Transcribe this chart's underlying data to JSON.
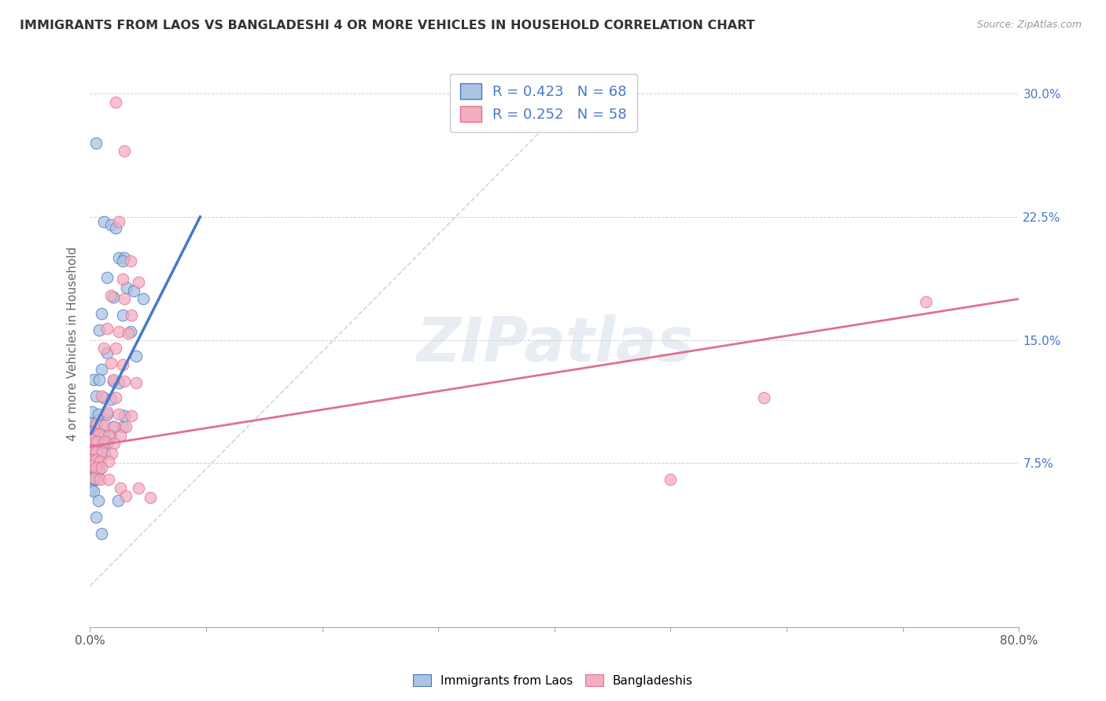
{
  "title": "IMMIGRANTS FROM LAOS VS BANGLADESHI 4 OR MORE VEHICLES IN HOUSEHOLD CORRELATION CHART",
  "source": "Source: ZipAtlas.com",
  "ylabel_label": "4 or more Vehicles in Household",
  "xlim": [
    0.0,
    0.8
  ],
  "ylim": [
    -0.025,
    0.32
  ],
  "yticks": [
    0.075,
    0.15,
    0.225,
    0.3
  ],
  "ytick_labels": [
    "7.5%",
    "15.0%",
    "22.5%",
    "30.0%"
  ],
  "xticks": [
    0.0,
    0.1,
    0.2,
    0.3,
    0.4,
    0.5,
    0.6,
    0.7,
    0.8
  ],
  "legend_label1": "Immigrants from Laos",
  "legend_label2": "Bangladeshis",
  "R1": 0.423,
  "N1": 68,
  "R2": 0.252,
  "N2": 58,
  "color_blue": "#aac4e2",
  "color_pink": "#f5adc0",
  "line_blue": "#4878c8",
  "line_pink": "#e07090",
  "line_diag_color": "#b0c8e0",
  "watermark": "ZIPatlas",
  "blue_line": [
    [
      0.001,
      0.093
    ],
    [
      0.095,
      0.225
    ]
  ],
  "pink_line": [
    [
      0.0,
      0.085
    ],
    [
      0.8,
      0.175
    ]
  ],
  "diag_line": [
    [
      0.0,
      0.0
    ],
    [
      0.42,
      0.3
    ]
  ],
  "blue_points": [
    [
      0.005,
      0.27
    ],
    [
      0.012,
      0.222
    ],
    [
      0.018,
      0.22
    ],
    [
      0.022,
      0.218
    ],
    [
      0.025,
      0.2
    ],
    [
      0.03,
      0.2
    ],
    [
      0.028,
      0.198
    ],
    [
      0.015,
      0.188
    ],
    [
      0.032,
      0.182
    ],
    [
      0.038,
      0.18
    ],
    [
      0.02,
      0.176
    ],
    [
      0.046,
      0.175
    ],
    [
      0.01,
      0.166
    ],
    [
      0.028,
      0.165
    ],
    [
      0.008,
      0.156
    ],
    [
      0.035,
      0.155
    ],
    [
      0.015,
      0.142
    ],
    [
      0.04,
      0.14
    ],
    [
      0.01,
      0.132
    ],
    [
      0.003,
      0.126
    ],
    [
      0.008,
      0.126
    ],
    [
      0.02,
      0.125
    ],
    [
      0.025,
      0.124
    ],
    [
      0.005,
      0.116
    ],
    [
      0.012,
      0.115
    ],
    [
      0.018,
      0.114
    ],
    [
      0.002,
      0.106
    ],
    [
      0.007,
      0.105
    ],
    [
      0.015,
      0.105
    ],
    [
      0.03,
      0.104
    ],
    [
      0.002,
      0.099
    ],
    [
      0.005,
      0.098
    ],
    [
      0.01,
      0.098
    ],
    [
      0.02,
      0.097
    ],
    [
      0.028,
      0.097
    ],
    [
      0.001,
      0.094
    ],
    [
      0.003,
      0.093
    ],
    [
      0.007,
      0.093
    ],
    [
      0.012,
      0.092
    ],
    [
      0.018,
      0.092
    ],
    [
      0.001,
      0.088
    ],
    [
      0.003,
      0.088
    ],
    [
      0.006,
      0.088
    ],
    [
      0.01,
      0.087
    ],
    [
      0.015,
      0.087
    ],
    [
      0.001,
      0.083
    ],
    [
      0.003,
      0.082
    ],
    [
      0.006,
      0.082
    ],
    [
      0.009,
      0.082
    ],
    [
      0.013,
      0.081
    ],
    [
      0.001,
      0.077
    ],
    [
      0.003,
      0.077
    ],
    [
      0.006,
      0.076
    ],
    [
      0.009,
      0.076
    ],
    [
      0.001,
      0.072
    ],
    [
      0.003,
      0.072
    ],
    [
      0.005,
      0.072
    ],
    [
      0.008,
      0.071
    ],
    [
      0.001,
      0.065
    ],
    [
      0.003,
      0.065
    ],
    [
      0.005,
      0.065
    ],
    [
      0.001,
      0.059
    ],
    [
      0.003,
      0.058
    ],
    [
      0.007,
      0.052
    ],
    [
      0.024,
      0.052
    ],
    [
      0.005,
      0.042
    ],
    [
      0.01,
      0.032
    ]
  ],
  "pink_points": [
    [
      0.022,
      0.295
    ],
    [
      0.03,
      0.265
    ],
    [
      0.025,
      0.222
    ],
    [
      0.035,
      0.198
    ],
    [
      0.028,
      0.187
    ],
    [
      0.042,
      0.185
    ],
    [
      0.018,
      0.177
    ],
    [
      0.03,
      0.175
    ],
    [
      0.036,
      0.165
    ],
    [
      0.015,
      0.157
    ],
    [
      0.025,
      0.155
    ],
    [
      0.033,
      0.154
    ],
    [
      0.012,
      0.145
    ],
    [
      0.022,
      0.145
    ],
    [
      0.018,
      0.136
    ],
    [
      0.028,
      0.135
    ],
    [
      0.02,
      0.126
    ],
    [
      0.03,
      0.125
    ],
    [
      0.04,
      0.124
    ],
    [
      0.01,
      0.116
    ],
    [
      0.022,
      0.115
    ],
    [
      0.015,
      0.106
    ],
    [
      0.025,
      0.105
    ],
    [
      0.036,
      0.104
    ],
    [
      0.005,
      0.099
    ],
    [
      0.013,
      0.098
    ],
    [
      0.021,
      0.097
    ],
    [
      0.031,
      0.097
    ],
    [
      0.002,
      0.094
    ],
    [
      0.008,
      0.093
    ],
    [
      0.016,
      0.092
    ],
    [
      0.026,
      0.092
    ],
    [
      0.002,
      0.089
    ],
    [
      0.006,
      0.088
    ],
    [
      0.013,
      0.088
    ],
    [
      0.021,
      0.087
    ],
    [
      0.002,
      0.083
    ],
    [
      0.005,
      0.082
    ],
    [
      0.011,
      0.082
    ],
    [
      0.019,
      0.081
    ],
    [
      0.002,
      0.077
    ],
    [
      0.005,
      0.077
    ],
    [
      0.009,
      0.076
    ],
    [
      0.016,
      0.076
    ],
    [
      0.002,
      0.073
    ],
    [
      0.005,
      0.072
    ],
    [
      0.01,
      0.072
    ],
    [
      0.003,
      0.066
    ],
    [
      0.009,
      0.065
    ],
    [
      0.016,
      0.065
    ],
    [
      0.026,
      0.06
    ],
    [
      0.042,
      0.06
    ],
    [
      0.031,
      0.055
    ],
    [
      0.052,
      0.054
    ],
    [
      0.5,
      0.065
    ],
    [
      0.72,
      0.173
    ],
    [
      0.58,
      0.115
    ]
  ]
}
